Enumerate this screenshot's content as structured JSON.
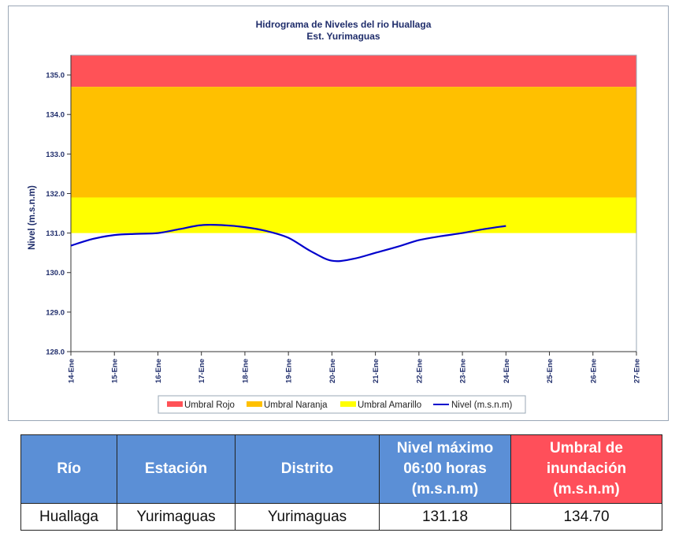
{
  "chart_data": {
    "type": "line",
    "title": "Hidrograma de Niveles del rio Huallaga",
    "subtitle": "Est. Yurimaguas",
    "xlabel": "",
    "ylabel": "Nivel (m.s.n.m)",
    "ylim": [
      128.0,
      135.5
    ],
    "yticks": [
      "128.0",
      "129.0",
      "130.0",
      "131.0",
      "132.0",
      "133.0",
      "134.0",
      "135.0"
    ],
    "categories": [
      "14-Ene",
      "15-Ene",
      "16-Ene",
      "17-Ene",
      "18-Ene",
      "19-Ene",
      "20-Ene",
      "21-Ene",
      "22-Ene",
      "23-Ene",
      "24-Ene",
      "25-Ene",
      "26-Ene",
      "27-Ene"
    ],
    "bands": [
      {
        "name": "Umbral Rojo",
        "from": 134.7,
        "to": 135.5,
        "color": "#ff5257"
      },
      {
        "name": "Umbral Naranja",
        "from": 131.9,
        "to": 134.7,
        "color": "#ffc000"
      },
      {
        "name": "Umbral Amarillo",
        "from": 131.0,
        "to": 131.9,
        "color": "#ffff00"
      }
    ],
    "series": [
      {
        "name": "Nivel (m.s.n.m)",
        "color": "#0000cc",
        "x": [
          0,
          0.5,
          1,
          1.5,
          2,
          2.5,
          3,
          3.5,
          4,
          4.5,
          5,
          5.5,
          6,
          6.5,
          7,
          7.5,
          8,
          8.5,
          9,
          9.5,
          10
        ],
        "values": [
          130.68,
          130.85,
          130.95,
          130.98,
          131.0,
          131.1,
          131.2,
          131.2,
          131.15,
          131.05,
          130.88,
          130.55,
          130.3,
          130.35,
          130.5,
          130.65,
          130.82,
          130.92,
          131.0,
          131.1,
          131.18
        ]
      }
    ],
    "grid": false,
    "legend": "bottom"
  },
  "legend": {
    "rojo": "Umbral Rojo",
    "naranja": "Umbral Naranja",
    "amarillo": "Umbral Amarillo",
    "nivel": "Nivel (m.s.n.m)"
  },
  "table": {
    "headers": {
      "rio": "Río",
      "estacion": "Estación",
      "distrito": "Distrito",
      "nivel_max_1": "Nivel máximo",
      "nivel_max_2": "06:00 horas",
      "nivel_max_3": "(m.s.n.m)",
      "umbral_1": "Umbral de",
      "umbral_2": "inundación",
      "umbral_3": "(m.s.n.m)"
    },
    "row": {
      "rio": "Huallaga",
      "estacion": "Yurimaguas",
      "distrito": "Yurimaguas",
      "nivel_max": "131.18",
      "umbral": "134.70"
    }
  }
}
